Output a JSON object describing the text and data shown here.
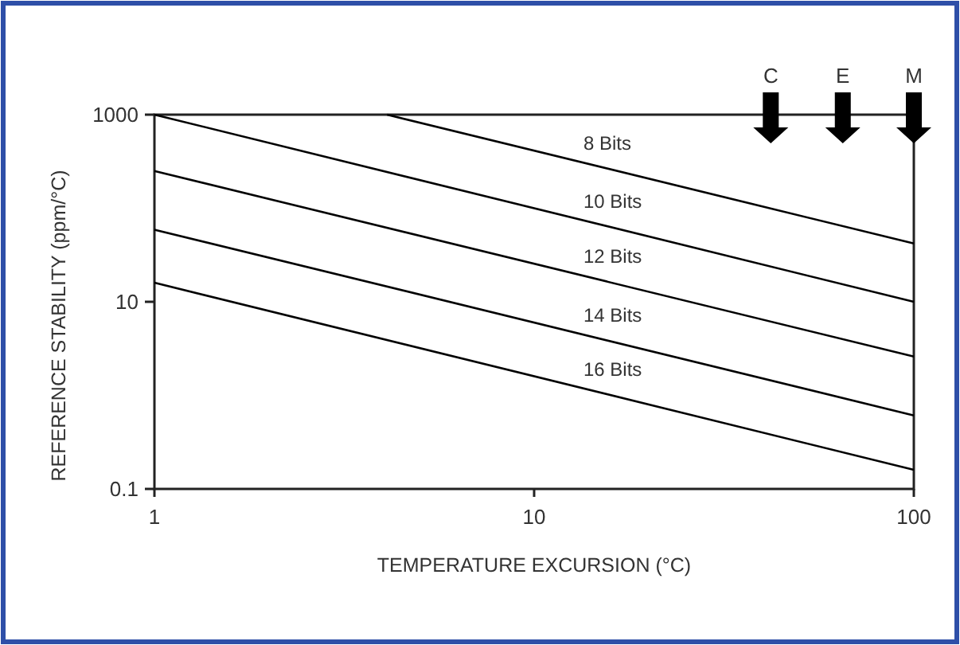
{
  "chart_data": {
    "type": "line",
    "xlabel": "TEMPERATURE EXCURSION (°C)",
    "ylabel": "REFERENCE STABILITY (ppm/°C)",
    "log": "xy",
    "xlim": [
      1,
      100
    ],
    "xticks": [
      1,
      10,
      100
    ],
    "ylim": [
      0.1,
      1000
    ],
    "yticks": [
      0.1,
      10,
      1000
    ],
    "grid": false,
    "marker": "none",
    "line_style": "solid",
    "series": [
      {
        "name": "8 Bits",
        "color": "#000000",
        "x": [
          4.1,
          100
        ],
        "values": [
          1000,
          42
        ]
      },
      {
        "name": "10 Bits",
        "color": "#000000",
        "x": [
          1,
          100
        ],
        "values": [
          1000,
          10
        ]
      },
      {
        "name": "12 Bits",
        "color": "#000000",
        "x": [
          1,
          100
        ],
        "values": [
          250,
          2.6
        ]
      },
      {
        "name": "14 Bits",
        "color": "#000000",
        "x": [
          1,
          100
        ],
        "values": [
          59,
          0.61
        ]
      },
      {
        "name": "16 Bits",
        "color": "#000000",
        "x": [
          1,
          100
        ],
        "values": [
          16,
          0.16
        ]
      }
    ],
    "annotations": [
      {
        "text": "C",
        "x": 42,
        "y": 1000
      },
      {
        "text": "E",
        "x": 65,
        "y": 1000
      },
      {
        "text": "M",
        "x": 100,
        "y": 1000
      }
    ]
  }
}
